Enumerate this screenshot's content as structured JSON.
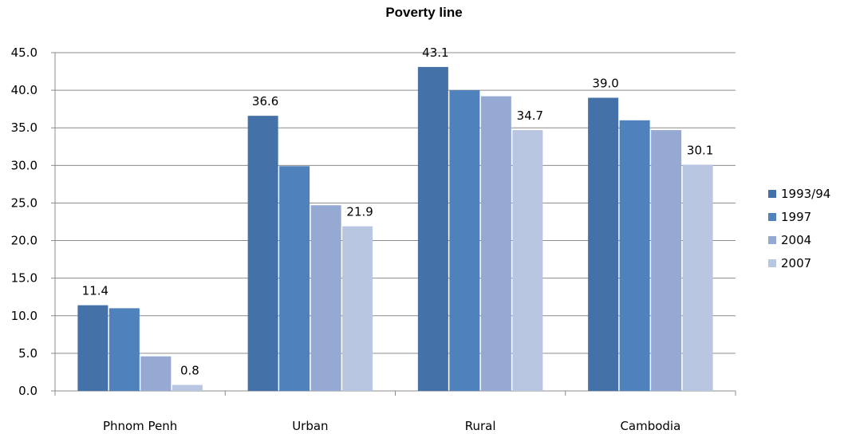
{
  "chart_data": {
    "type": "bar",
    "title": "Poverty line",
    "xlabel": "",
    "ylabel": "",
    "ylim": [
      0,
      45
    ],
    "yticks": [
      "0.0",
      "5.0",
      "10.0",
      "15.0",
      "20.0",
      "25.0",
      "30.0",
      "35.0",
      "40.0",
      "45.0"
    ],
    "categories": [
      "Phnom Penh",
      "Urban",
      "Rural",
      "Cambodia"
    ],
    "grid": true,
    "legend_position": "right",
    "series": [
      {
        "name": "1993/94",
        "color": "#4472A8",
        "values": [
          11.4,
          36.6,
          43.1,
          39.0
        ],
        "labels": [
          "11.4",
          "36.6",
          "43.1",
          "39.0"
        ]
      },
      {
        "name": "1997",
        "color": "#4F81BD",
        "values": [
          11.0,
          29.9,
          40.0,
          36.0
        ],
        "labels": [
          "",
          "",
          "",
          ""
        ]
      },
      {
        "name": "2004",
        "color": "#95A9D2",
        "values": [
          4.6,
          24.7,
          39.2,
          34.7
        ],
        "labels": [
          "",
          "",
          "",
          ""
        ]
      },
      {
        "name": "2007",
        "color": "#B9C6E2",
        "values": [
          0.8,
          21.9,
          34.7,
          30.1
        ],
        "labels": [
          "0.8",
          "21.9",
          "34.7",
          "30.1"
        ]
      }
    ]
  }
}
